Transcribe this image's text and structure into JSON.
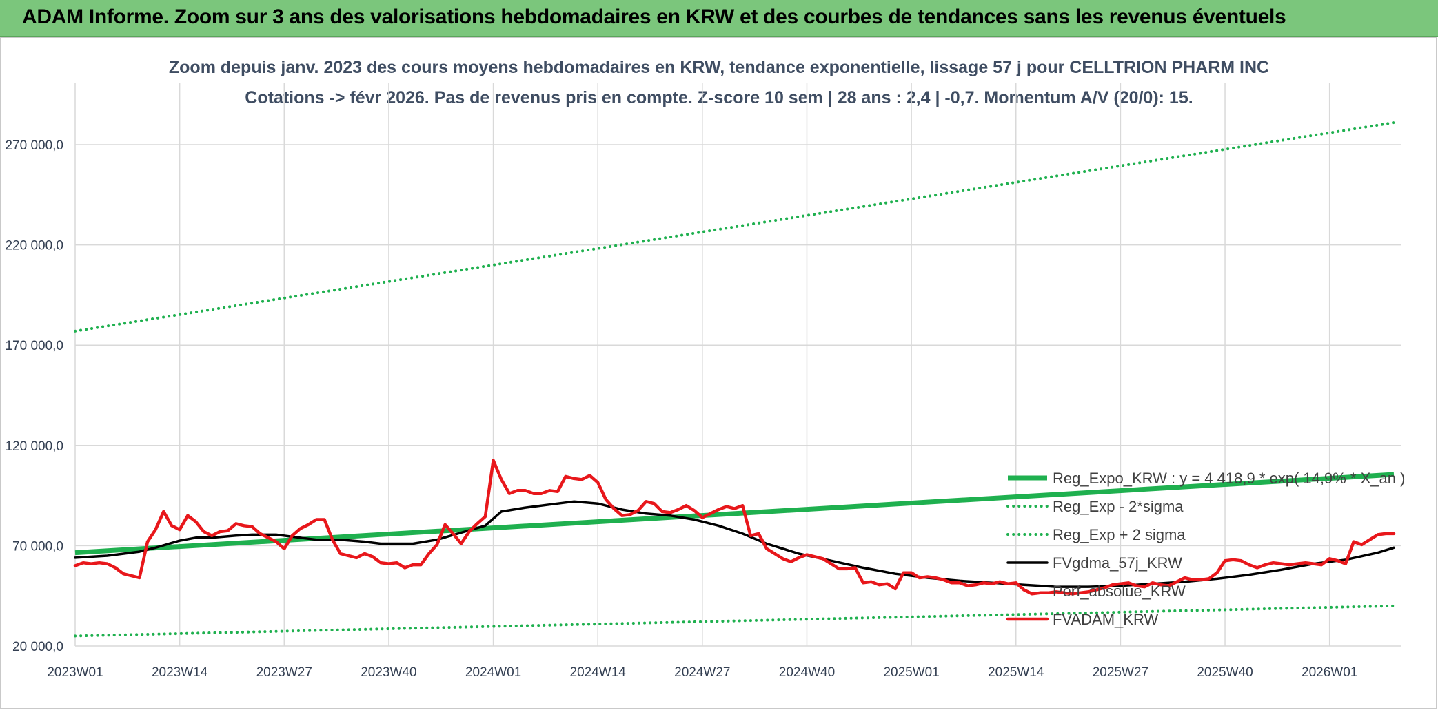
{
  "banner": {
    "title": "ADAM Informe. Zoom sur 3 ans des valorisations hebdomadaires en KRW et des courbes de tendances sans les revenus éventuels"
  },
  "colors": {
    "banner_bg": "#7bc67c",
    "trend": "#1fb04f",
    "smooth": "#000000",
    "price": "#e8171b",
    "grid": "#d9d9d9"
  },
  "chart_data": {
    "type": "line",
    "title": "Zoom depuis janv. 2023 des cours moyens hebdomadaires en KRW, tendance exponentielle, lissage 57 j pour CELLTRION PHARM INC",
    "subtitle": "Cotations -> févr 2026. Pas de revenus pris en compte. Z-score 10 sem | 28 ans : 2,4 | -0,7. Momentum A/V (20/0): 15.",
    "xlabel": "",
    "ylabel": "",
    "ylim": [
      20000,
      290000
    ],
    "y_ticks": [
      20000,
      70000,
      120000,
      170000,
      220000,
      270000
    ],
    "y_tick_labels": [
      "20 000,0",
      "70 000,0",
      "120 000,0",
      "170 000,0",
      "220 000,0",
      "270 000,0"
    ],
    "x_tick_labels": [
      "2023W01",
      "2023W14",
      "2023W27",
      "2023W40",
      "2024W01",
      "2024W14",
      "2024W27",
      "2024W40",
      "2025W01",
      "2025W14",
      "2025W27",
      "2025W40",
      "2026W01"
    ],
    "x_tick_week_index": [
      0,
      13,
      26,
      39,
      52,
      65,
      78,
      91,
      104,
      117,
      130,
      143,
      156
    ],
    "x_range_weeks": [
      0,
      164
    ],
    "grid": true,
    "legend_position": "right",
    "series": [
      {
        "name": "Reg_Expo_KRW : y = 4 418,9 * exp( 14,9% * X_an )",
        "style": "solid-thick",
        "color": "#1fb04f",
        "week": [
          0,
          164
        ],
        "values": [
          66500,
          105500
        ]
      },
      {
        "name": "Reg_Exp - 2*sigma",
        "style": "dotted",
        "color": "#1fb04f",
        "week": [
          0,
          164
        ],
        "values": [
          25000,
          40000
        ]
      },
      {
        "name": "Reg_Exp + 2 sigma",
        "style": "dotted",
        "color": "#1fb04f",
        "week": [
          0,
          164
        ],
        "values": [
          177000,
          281000
        ]
      },
      {
        "name": "FVgdma_57j_KRW",
        "style": "solid",
        "color": "#000000",
        "week": [
          0,
          4,
          8,
          10,
          13,
          15,
          17,
          20,
          22,
          25,
          28,
          30,
          33,
          36,
          38,
          42,
          45,
          48,
          51,
          53,
          56,
          59,
          62,
          65,
          68,
          71,
          74,
          77,
          80,
          83,
          86,
          90,
          94,
          98,
          102,
          106,
          110,
          114,
          118,
          122,
          126,
          130,
          134,
          138,
          142,
          146,
          150,
          154,
          158,
          162,
          164
        ],
        "values": [
          64000,
          65000,
          67000,
          69000,
          72500,
          74000,
          74000,
          75000,
          75500,
          75500,
          74000,
          73000,
          73000,
          72000,
          71000,
          71000,
          73000,
          76500,
          80000,
          87000,
          89000,
          90500,
          92000,
          91000,
          88000,
          86000,
          85000,
          83000,
          80000,
          76000,
          71000,
          66000,
          62500,
          59000,
          56000,
          54000,
          52500,
          51500,
          50500,
          49500,
          49500,
          50000,
          51000,
          52000,
          53500,
          55500,
          58000,
          61000,
          63000,
          66500,
          69000
        ]
      },
      {
        "name": "Perf_absolue_KRW",
        "style": "none",
        "color": "#d9d9d9",
        "week": [],
        "values": []
      },
      {
        "name": "FVADAM_KRW",
        "style": "solid-medium",
        "color": "#e8171b",
        "week": [
          0,
          1,
          2,
          3,
          4,
          5,
          6,
          7,
          8,
          9,
          10,
          11,
          12,
          13,
          14,
          15,
          16,
          17,
          18,
          19,
          20,
          21,
          22,
          23,
          24,
          25,
          26,
          27,
          28,
          29,
          30,
          31,
          32,
          33,
          34,
          35,
          36,
          37,
          38,
          39,
          40,
          41,
          42,
          43,
          44,
          45,
          46,
          47,
          48,
          49,
          50,
          51,
          52,
          53,
          54,
          55,
          56,
          57,
          58,
          59,
          60,
          61,
          62,
          63,
          64,
          65,
          66,
          67,
          68,
          69,
          70,
          71,
          72,
          73,
          74,
          75,
          76,
          77,
          78,
          79,
          80,
          81,
          82,
          83,
          84,
          85,
          86,
          87,
          88,
          89,
          90,
          91,
          92,
          93,
          94,
          95,
          96,
          97,
          98,
          99,
          100,
          101,
          102,
          103,
          104,
          105,
          106,
          107,
          108,
          109,
          110,
          111,
          112,
          113,
          114,
          115,
          116,
          117,
          118,
          119,
          120,
          121,
          122,
          123,
          124,
          125,
          126,
          127,
          128,
          129,
          130,
          131,
          132,
          133,
          134,
          135,
          136,
          137,
          138,
          139,
          140,
          141,
          142,
          143,
          144,
          145,
          146,
          147,
          148,
          149,
          150,
          151,
          152,
          153,
          154,
          155,
          156,
          157,
          158,
          159,
          160,
          161,
          162,
          163,
          164
        ],
        "values": [
          60000,
          61500,
          61000,
          61500,
          61000,
          59000,
          56000,
          55000,
          54000,
          72000,
          78000,
          87000,
          80000,
          78000,
          85000,
          82000,
          77000,
          75000,
          77000,
          77500,
          81000,
          80000,
          79500,
          76000,
          74000,
          72000,
          68500,
          75000,
          78500,
          80500,
          83000,
          83000,
          73000,
          66000,
          65000,
          64000,
          66000,
          64500,
          61500,
          61000,
          61500,
          59000,
          60500,
          60500,
          66000,
          70500,
          80500,
          76000,
          71000,
          77000,
          81000,
          84500,
          112500,
          103000,
          96000,
          97500,
          97500,
          96000,
          96000,
          97500,
          97000,
          104500,
          103500,
          103000,
          105000,
          101500,
          93000,
          88500,
          85000,
          85500,
          87500,
          92000,
          91000,
          87000,
          86500,
          88000,
          90000,
          87500,
          84000,
          86000,
          88000,
          89500,
          88500,
          90000,
          75000,
          76000,
          68500,
          66000,
          63500,
          62000,
          64000,
          65500,
          64500,
          63500,
          61000,
          58500,
          58500,
          59000,
          51500,
          52000,
          50500,
          51000,
          48500,
          56500,
          56500,
          54000,
          54500,
          54000,
          53000,
          51500,
          51500,
          50000,
          50500,
          51500,
          51000,
          52000,
          51000,
          51500,
          48000,
          46000,
          46500,
          46500,
          47000,
          46500,
          46000,
          46500,
          47000,
          48000,
          49000,
          50500,
          51000,
          51500,
          50000,
          49500,
          51500,
          50500,
          50000,
          52000,
          54000,
          53000,
          53000,
          53500,
          56500,
          62500,
          63000,
          62500,
          60500,
          59000,
          60500,
          61500,
          61000,
          60500,
          61000,
          61500,
          61000,
          60500,
          63500,
          62500,
          61000,
          72000,
          70500,
          73000,
          75500,
          76000,
          76000
        ]
      }
    ]
  }
}
